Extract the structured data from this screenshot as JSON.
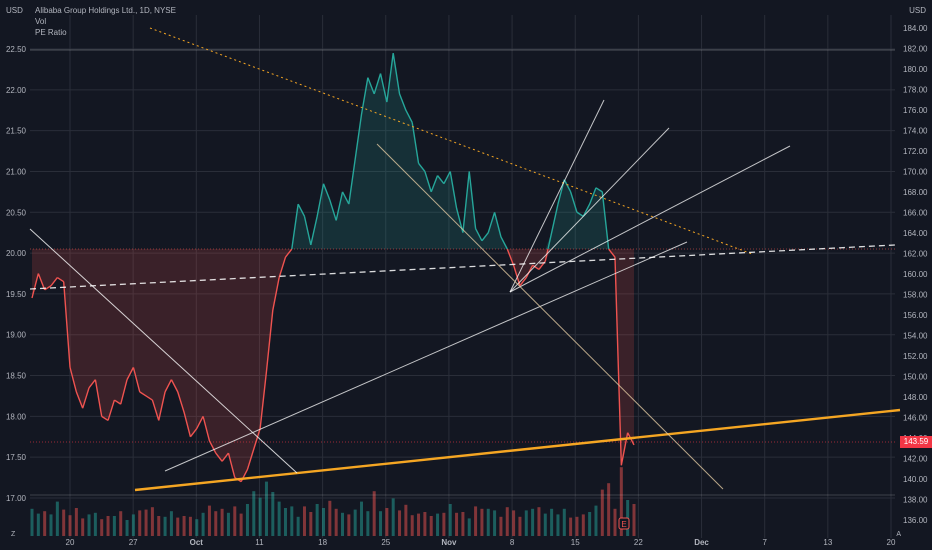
{
  "legend": {
    "title": "Alibaba Group Holdings Ltd., 1D, NYSE",
    "vol": "Vol",
    "pe": "PE Ratio"
  },
  "currency_left": "USD",
  "currency_right": "USD",
  "corner_z": "Z",
  "corner_a": "A",
  "last_price": "143.59",
  "colors": {
    "background": "#131722",
    "up": "#26a69a",
    "down": "#ef5350",
    "trendline": "#f5a623",
    "price_tag": "#f23645"
  },
  "chart_data": {
    "type": "area",
    "x_ticks": [
      "20",
      "27",
      "Oct",
      "11",
      "18",
      "25",
      "Nov",
      "8",
      "15",
      "22",
      "Dec",
      "7",
      "13",
      "20"
    ],
    "left_axis": {
      "label": "PE Ratio",
      "ticks": [
        17.0,
        17.5,
        18.0,
        18.5,
        19.0,
        19.5,
        20.0,
        20.5,
        21.0,
        21.5,
        22.0,
        22.5
      ],
      "range": [
        16.8,
        22.9
      ]
    },
    "right_axis": {
      "label": "USD",
      "ticks": [
        136,
        138,
        140,
        142,
        144,
        146,
        148,
        150,
        152,
        154,
        156,
        158,
        160,
        162,
        164,
        166,
        168,
        170,
        172,
        174,
        176,
        178,
        180,
        182,
        184
      ],
      "range": [
        135.5,
        184.8
      ]
    },
    "pe_ratio": [
      19.45,
      19.75,
      19.55,
      19.6,
      19.7,
      19.65,
      18.6,
      18.3,
      18.1,
      18.35,
      18.45,
      18.0,
      17.95,
      18.2,
      18.15,
      18.45,
      18.6,
      18.3,
      18.25,
      18.2,
      17.95,
      18.3,
      18.45,
      18.3,
      18.05,
      17.75,
      17.85,
      18.0,
      17.7,
      17.55,
      17.45,
      17.55,
      17.25,
      17.2,
      17.35,
      17.6,
      17.85,
      18.55,
      19.3,
      19.7,
      19.95,
      20.05,
      20.6,
      20.45,
      20.1,
      20.45,
      20.85,
      20.65,
      20.4,
      20.75,
      20.6,
      21.15,
      21.7,
      22.15,
      21.95,
      22.2,
      21.85,
      22.45,
      21.95,
      21.75,
      21.6,
      21.1,
      21.0,
      20.75,
      20.95,
      20.85,
      21.0,
      20.55,
      20.25,
      21.0,
      20.3,
      20.15,
      20.25,
      20.5,
      20.2,
      20.05,
      19.85,
      19.6,
      19.7,
      19.85,
      19.8,
      19.9,
      20.25,
      20.6,
      20.9,
      20.75,
      20.5,
      20.45,
      20.6,
      20.8,
      20.75,
      20.05,
      19.95,
      17.4,
      17.8,
      17.65
    ],
    "volume": [
      0.34,
      0.28,
      0.31,
      0.27,
      0.43,
      0.33,
      0.26,
      0.35,
      0.22,
      0.27,
      0.29,
      0.21,
      0.25,
      0.25,
      0.31,
      0.2,
      0.27,
      0.32,
      0.33,
      0.36,
      0.25,
      0.24,
      0.31,
      0.23,
      0.25,
      0.24,
      0.21,
      0.29,
      0.38,
      0.31,
      0.34,
      0.29,
      0.37,
      0.28,
      0.4,
      0.56,
      0.48,
      0.68,
      0.55,
      0.43,
      0.35,
      0.37,
      0.24,
      0.37,
      0.3,
      0.4,
      0.35,
      0.44,
      0.34,
      0.29,
      0.27,
      0.33,
      0.43,
      0.31,
      0.56,
      0.31,
      0.35,
      0.47,
      0.32,
      0.39,
      0.26,
      0.28,
      0.3,
      0.25,
      0.28,
      0.29,
      0.4,
      0.29,
      0.3,
      0.22,
      0.37,
      0.34,
      0.34,
      0.32,
      0.24,
      0.36,
      0.32,
      0.24,
      0.32,
      0.34,
      0.36,
      0.28,
      0.34,
      0.27,
      0.34,
      0.23,
      0.24,
      0.27,
      0.3,
      0.38,
      0.58,
      0.66,
      0.34,
      0.86,
      0.45,
      0.4
    ]
  }
}
